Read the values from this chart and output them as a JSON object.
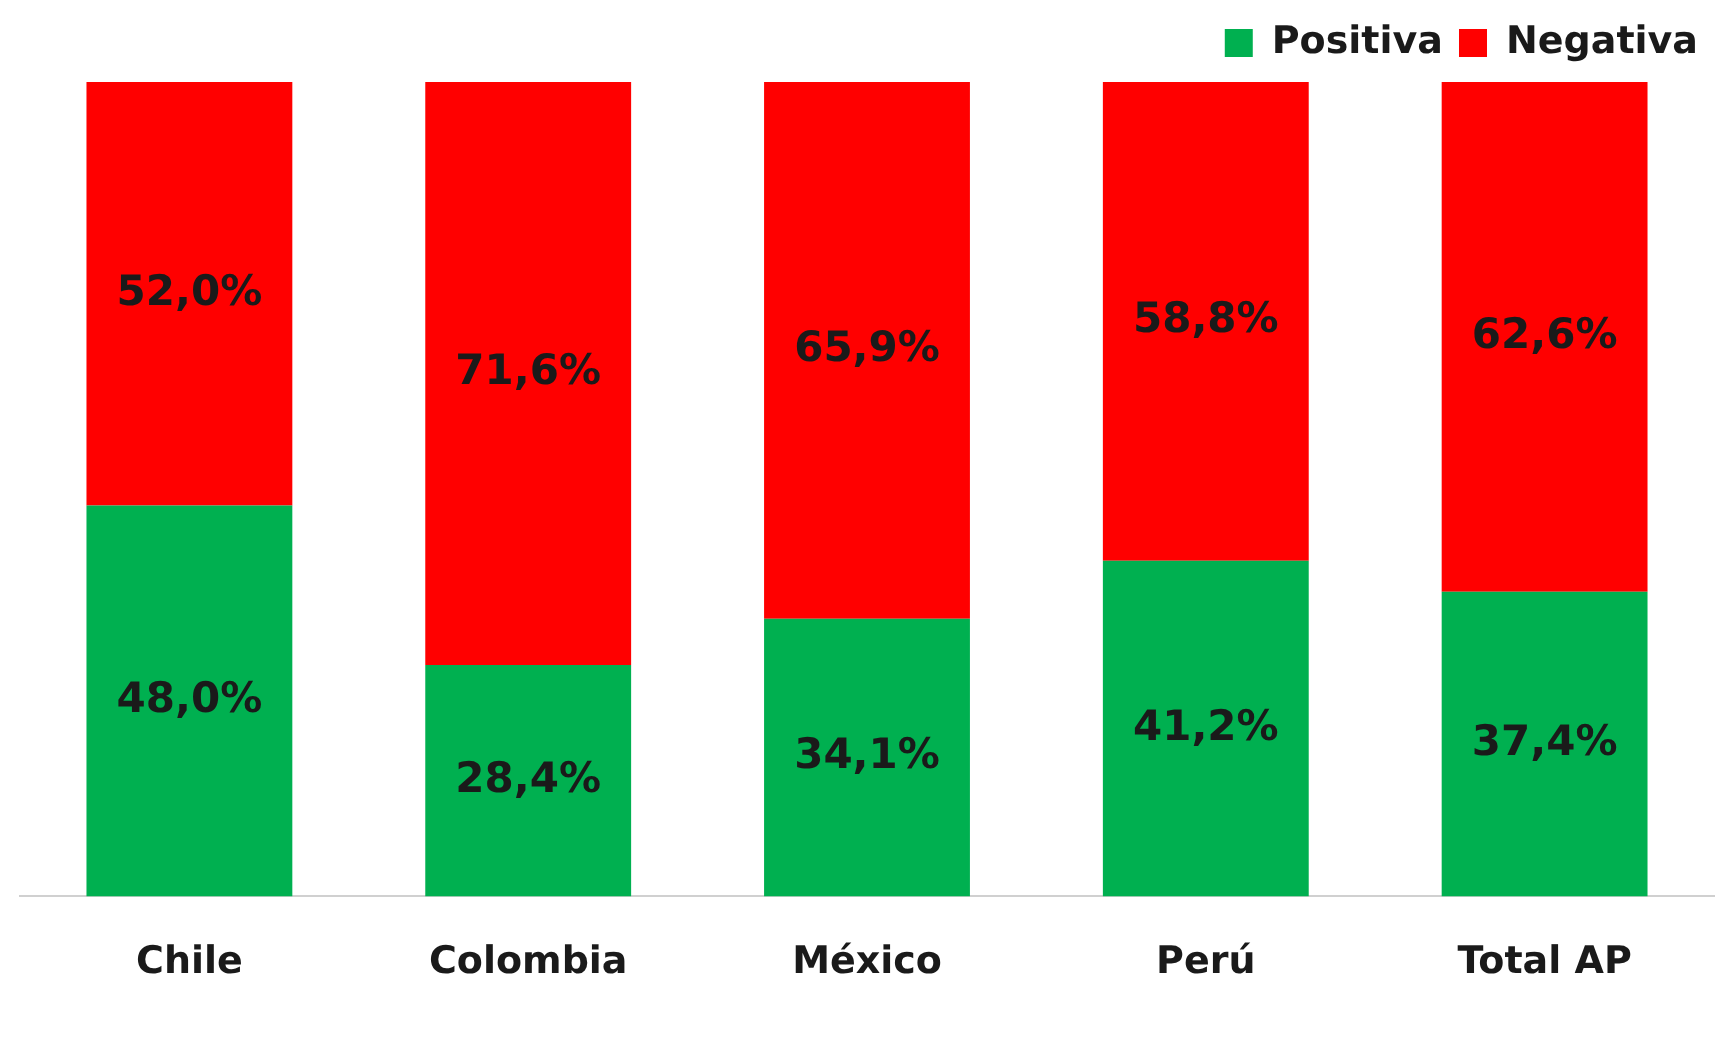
{
  "chart_data": {
    "type": "bar",
    "stacked": true,
    "categories": [
      "Chile",
      "Colombia",
      "México",
      "Perú",
      "Total AP"
    ],
    "series": [
      {
        "name": "Positiva",
        "color": "#00b050",
        "values": [
          48.0,
          28.4,
          34.1,
          41.2,
          37.4
        ],
        "value_labels": [
          "48,0%",
          "28,4%",
          "34,1%",
          "41,2%",
          "37,4%"
        ]
      },
      {
        "name": "Negativa",
        "color": "#ff0000",
        "values": [
          52.0,
          71.6,
          65.9,
          58.8,
          62.6
        ],
        "value_labels": [
          "52,0%",
          "71,6%",
          "65,9%",
          "58,8%",
          "62,6%"
        ]
      }
    ],
    "legend": "top right",
    "grid": false,
    "tick_labels": "x"
  }
}
